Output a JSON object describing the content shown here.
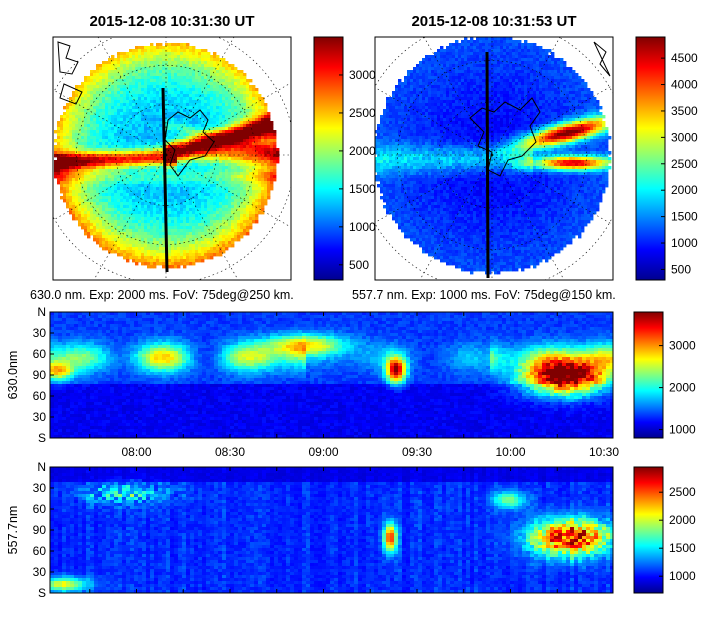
{
  "colormap": [
    "#00008f",
    "#0000ff",
    "#0080ff",
    "#00ffff",
    "#80ff80",
    "#ffff00",
    "#ff8000",
    "#ff0000",
    "#800000"
  ],
  "chart_data": [
    {
      "type": "heatmap",
      "title": "2015-12-08 10:31:30 UT",
      "caption": "630.0 nm. Exp: 2000 ms. FoV: 75deg@250 km.",
      "colorbar": {
        "min": 300,
        "max": 3500,
        "ticks": [
          500,
          1000,
          1500,
          2000,
          2500,
          3000
        ]
      }
    },
    {
      "type": "heatmap",
      "title": "2015-12-08 10:31:53 UT",
      "caption": "557.7 nm. Exp: 1000 ms. FoV: 75deg@150 km.",
      "colorbar": {
        "min": 300,
        "max": 4900,
        "ticks": [
          500,
          1000,
          1500,
          2000,
          2500,
          3000,
          3500,
          4000,
          4500
        ]
      }
    },
    {
      "type": "heatmap",
      "ylabel": "630.0nm",
      "y_ticks": [
        "N",
        "30",
        "60",
        "90",
        "60",
        "30",
        "S"
      ],
      "x_ticks": [
        "08:00",
        "08:30",
        "09:00",
        "09:30",
        "10:00",
        "10:30"
      ],
      "colorbar": {
        "min": 800,
        "max": 3800,
        "ticks": [
          1000,
          2000,
          3000
        ]
      }
    },
    {
      "type": "heatmap",
      "ylabel": "557.7nm",
      "y_ticks": [
        "N",
        "30",
        "60",
        "90",
        "60",
        "30",
        "S"
      ],
      "colorbar": {
        "min": 700,
        "max": 2950,
        "ticks": [
          1000,
          1500,
          2000,
          2500
        ]
      }
    }
  ]
}
